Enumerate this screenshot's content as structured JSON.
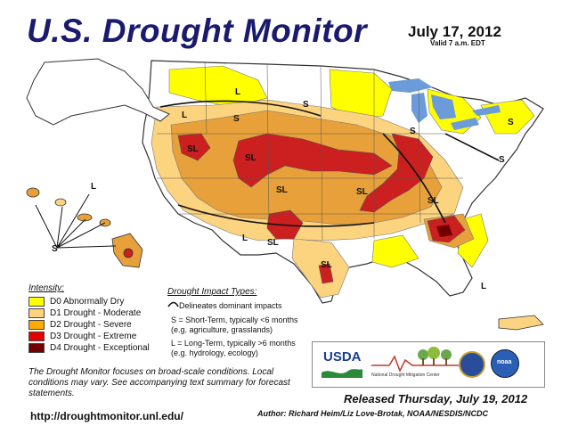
{
  "title": "U.S. Drought Monitor",
  "date": "July 17, 2012",
  "valid": "Valid 7 a.m. EDT",
  "legend": {
    "title": "Intensity:",
    "items": [
      {
        "label": "D0 Abnormally Dry",
        "color": "#ffff00"
      },
      {
        "label": "D1 Drought - Moderate",
        "color": "#fcd37f"
      },
      {
        "label": "D2 Drought - Severe",
        "color": "#ffaa00"
      },
      {
        "label": "D3 Drought - Extreme",
        "color": "#e60000"
      },
      {
        "label": "D4 Drought - Exceptional",
        "color": "#730000"
      }
    ]
  },
  "impact": {
    "title": "Drought Impact Types:",
    "delineates": "Delineates dominant impacts",
    "short_term": "S = Short-Term, typically <6 months",
    "short_term_eg": "(e.g. agriculture, grasslands)",
    "long_term": "L = Long-Term, typically >6 months",
    "long_term_eg": "(e.g. hydrology, ecology)"
  },
  "note": "The Drought Monitor focuses on broad-scale conditions. Local conditions may vary. See accompanying text summary for forecast statements.",
  "url": "http://droughtmonitor.unl.edu/",
  "released": "Released Thursday, July 19, 2012",
  "author": "Author: Richard Heim/Liz Love-Brotak, NOAA/NESDIS/NCDC",
  "logos": {
    "usda": "USDA",
    "ndmc": "National Drought Mitigation Center",
    "noaa": "noaa"
  },
  "map_labels": {
    "sl": "SL",
    "s": "S",
    "l": "L"
  },
  "colors": {
    "d0": "#ffff00",
    "d1": "#fcd37f",
    "d2": "#ffaa00",
    "d3": "#e60000",
    "d4": "#730000",
    "none": "#ffffff",
    "border": "#333333",
    "water": "#6b9bd8"
  }
}
